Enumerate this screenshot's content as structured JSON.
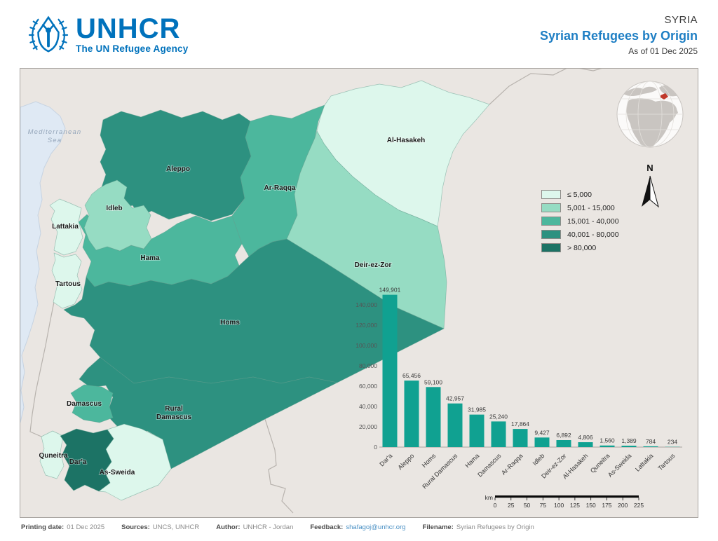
{
  "header": {
    "emblem_icon": "unhcr-emblem-icon",
    "org_name": "UNHCR",
    "org_tagline": "The UN Refugee Agency",
    "brand_color": "#0072BC",
    "country_label": "SYRIA",
    "title": "Syrian Refugees by Origin",
    "as_of": "As of 01 Dec 2025"
  },
  "map": {
    "sea_label_lines": [
      "Mediterranean",
      "Sea"
    ],
    "north_indicator": "N",
    "legend": {
      "items": [
        {
          "label": "≤ 5,000",
          "color": "#DDF7EC"
        },
        {
          "label": "5,001 - 15,000",
          "color": "#96DCC3"
        },
        {
          "label": "15,001 - 40,000",
          "color": "#4CB79D"
        },
        {
          "label": "40,001 - 80,000",
          "color": "#2D9180"
        },
        {
          "label": "> 80,000",
          "color": "#1C7365"
        }
      ]
    },
    "class_breaks": [
      5000,
      15000,
      40000,
      80000
    ],
    "regions": [
      {
        "key": "aleppo",
        "name": "Aleppo",
        "refugees": 65456
      },
      {
        "key": "ar_raqqa",
        "name": "Ar-Raqqa",
        "refugees": 17864
      },
      {
        "key": "al_hasakeh",
        "name": "Al-Hasakeh",
        "refugees": 4806
      },
      {
        "key": "deir_ez_zor",
        "name": "Deir-ez-Zor",
        "refugees": 6892
      },
      {
        "key": "homs",
        "name": "Homs",
        "refugees": 59100
      },
      {
        "key": "hama",
        "name": "Hama",
        "refugees": 31985
      },
      {
        "key": "idleb",
        "name": "Idleb",
        "refugees": 9427
      },
      {
        "key": "lattakia",
        "name": "Lattakia",
        "refugees": 784
      },
      {
        "key": "tartous",
        "name": "Tartous",
        "refugees": 234
      },
      {
        "key": "rural_damascus",
        "name": "Rural Damascus",
        "refugees": 42957
      },
      {
        "key": "damascus",
        "name": "Damascus",
        "refugees": 25240
      },
      {
        "key": "quneitra",
        "name": "Quneitra",
        "refugees": 1560
      },
      {
        "key": "as_sweida",
        "name": "As-Sweida",
        "refugees": 1389
      },
      {
        "key": "dara",
        "name": "Dar'a",
        "refugees": 149901
      }
    ],
    "scale_bar": {
      "unit": "km",
      "ticks": [
        0,
        25,
        50,
        75,
        100,
        125,
        150,
        175,
        200,
        225
      ]
    }
  },
  "chart_data": {
    "type": "bar",
    "categories": [
      "Dar'a",
      "Aleppo",
      "Homs",
      "Rural Damascus",
      "Hama",
      "Damascus",
      "Ar-Raqqa",
      "Idleb",
      "Deir-ez-Zor",
      "Al-Hasakeh",
      "Quneitra",
      "As-Sweida",
      "Lattakia",
      "Tartous"
    ],
    "values": [
      149901,
      65456,
      59100,
      42957,
      31985,
      25240,
      17864,
      9427,
      6892,
      4806,
      1560,
      1389,
      784,
      234
    ],
    "value_labels": [
      "149,901",
      "65,456",
      "59,100",
      "42,957",
      "31,985",
      "25,240",
      "17,864",
      "9,427",
      "6,892",
      "4,806",
      "1,560",
      "1,389",
      "784",
      "234"
    ],
    "yticks": [
      "0",
      "20,000",
      "40,000",
      "60,000",
      "80,000",
      "100,000",
      "120,000",
      "140,000"
    ],
    "ylim": [
      0,
      150000
    ],
    "ytick_step": 20000,
    "bar_color": "#10A191",
    "grid": false,
    "legend_position": "none"
  },
  "footer": {
    "items": [
      {
        "label": "Printing date:",
        "value": "01 Dec 2025"
      },
      {
        "label": "Sources:",
        "value": "UNCS, UNHCR"
      },
      {
        "label": "Author:",
        "value": "UNHCR - Jordan"
      },
      {
        "label": "Feedback:",
        "value": "shafagoj@unhcr.org",
        "accent": true
      },
      {
        "label": "Filename:",
        "value": "Syrian Refugees by Origin"
      }
    ]
  }
}
